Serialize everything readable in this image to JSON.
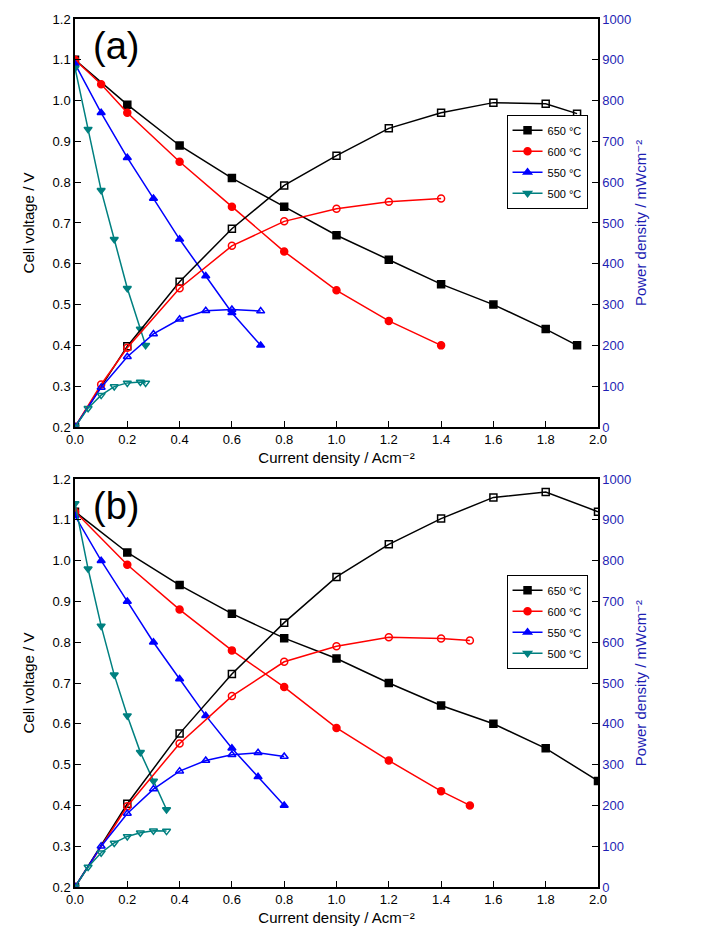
{
  "chart_data": [
    {
      "type": "line",
      "title": "(a)",
      "x_label": "Current density / Acm⁻²",
      "y_label": "Cell voltage / V",
      "y2_label": "Power density / mWcm⁻²",
      "xlim": [
        0,
        2
      ],
      "xticks": [
        {
          "value": 0,
          "label": "0.0"
        },
        0.2,
        0.4,
        0.6,
        0.8,
        {
          "value": 1,
          "label": "1.0"
        },
        1.2,
        1.4,
        1.6,
        1.8,
        {
          "value": 2,
          "label": "2.0"
        }
      ],
      "ylim": [
        0.2,
        1.2
      ],
      "yticks": [
        0.2,
        0.3,
        0.4,
        0.5,
        0.6,
        0.7,
        0.8,
        0.9,
        {
          "value": 1,
          "label": "1.0"
        },
        1.1,
        1.2
      ],
      "y2lim": [
        0,
        1000
      ],
      "y2ticks": [
        0,
        100,
        200,
        300,
        400,
        500,
        600,
        700,
        800,
        900,
        1000
      ],
      "grid": false,
      "legend": "right",
      "series": [
        {
          "name": "650 °C",
          "color": "#000000",
          "marker": "square",
          "line_style": "solid",
          "x": [
            0,
            0.2,
            0.4,
            0.6,
            0.8,
            1.0,
            1.2,
            1.4,
            1.6,
            1.8,
            1.92
          ],
          "values": [
            1.1,
            0.99,
            0.89,
            0.81,
            0.74,
            0.67,
            0.61,
            0.55,
            0.5,
            0.44,
            0.4
          ]
        },
        {
          "name": "600 °C",
          "color": "#ff0000",
          "marker": "circle",
          "line_style": "solid",
          "x": [
            0,
            0.1,
            0.2,
            0.4,
            0.6,
            0.8,
            1.0,
            1.2,
            1.4
          ],
          "values": [
            1.1,
            1.04,
            0.97,
            0.85,
            0.74,
            0.63,
            0.535,
            0.46,
            0.4
          ]
        },
        {
          "name": "550 °C",
          "color": "#0000ff",
          "marker": "triangle-up",
          "line_style": "solid",
          "x": [
            0,
            0.1,
            0.2,
            0.3,
            0.4,
            0.5,
            0.6,
            0.71
          ],
          "values": [
            1.09,
            0.97,
            0.86,
            0.76,
            0.66,
            0.57,
            0.48,
            0.4
          ]
        },
        {
          "name": "500 °C",
          "color": "#008080",
          "marker": "triangle-down",
          "line_style": "solid",
          "x": [
            0,
            0.05,
            0.1,
            0.15,
            0.2,
            0.25,
            0.27
          ],
          "values": [
            1.08,
            0.93,
            0.78,
            0.66,
            0.54,
            0.44,
            0.4
          ]
        },
        {
          "name": "650 °C",
          "color": "#000000",
          "marker": "square-open",
          "line_style": "solid",
          "axis": "y2",
          "x": [
            0,
            0.2,
            0.4,
            0.6,
            0.8,
            1.0,
            1.2,
            1.4,
            1.6,
            1.8,
            1.92
          ],
          "values": [
            0,
            198,
            356,
            486,
            592,
            665,
            732,
            770,
            795,
            792,
            768
          ]
        },
        {
          "name": "600 °C",
          "color": "#ff0000",
          "marker": "circle-open",
          "line_style": "solid",
          "axis": "y2",
          "x": [
            0,
            0.1,
            0.2,
            0.4,
            0.6,
            0.8,
            1.0,
            1.2,
            1.4
          ],
          "values": [
            0,
            104,
            194,
            340,
            444,
            504,
            535,
            552,
            560
          ]
        },
        {
          "name": "550 °C",
          "color": "#0000ff",
          "marker": "triangle-up-open",
          "line_style": "solid",
          "axis": "y2",
          "x": [
            0,
            0.1,
            0.2,
            0.3,
            0.4,
            0.5,
            0.6,
            0.71
          ],
          "values": [
            0,
            97,
            172,
            228,
            264,
            285,
            288,
            284
          ]
        },
        {
          "name": "500 °C",
          "color": "#008080",
          "marker": "triangle-down-open",
          "line_style": "solid",
          "axis": "y2",
          "x": [
            0,
            0.05,
            0.1,
            0.15,
            0.2,
            0.25,
            0.27
          ],
          "values": [
            0,
            46,
            78,
            99,
            108,
            110,
            108
          ]
        }
      ]
    },
    {
      "type": "line",
      "title": "(b)",
      "x_label": "Current density / Acm⁻²",
      "y_label": "Cell voltage / V",
      "y2_label": "Power density / mWcm⁻²",
      "xlim": [
        0,
        2
      ],
      "xticks": [
        {
          "value": 0,
          "label": "0.0"
        },
        0.2,
        0.4,
        0.6,
        0.8,
        {
          "value": 1,
          "label": "1.0"
        },
        1.2,
        1.4,
        1.6,
        1.8,
        {
          "value": 2,
          "label": "2.0"
        }
      ],
      "ylim": [
        0.2,
        1.2
      ],
      "yticks": [
        0.2,
        0.3,
        0.4,
        0.5,
        0.6,
        0.7,
        0.8,
        0.9,
        {
          "value": 1,
          "label": "1.0"
        },
        1.1,
        1.2
      ],
      "y2lim": [
        0,
        1000
      ],
      "y2ticks": [
        0,
        100,
        200,
        300,
        400,
        500,
        600,
        700,
        800,
        900,
        1000
      ],
      "grid": false,
      "legend": "right",
      "series": [
        {
          "name": "650 °C",
          "color": "#000000",
          "marker": "square",
          "line_style": "solid",
          "x": [
            0,
            0.2,
            0.4,
            0.6,
            0.8,
            1.0,
            1.2,
            1.4,
            1.6,
            1.8,
            2.0
          ],
          "values": [
            1.12,
            1.02,
            0.94,
            0.87,
            0.81,
            0.76,
            0.7,
            0.645,
            0.6,
            0.54,
            0.46
          ]
        },
        {
          "name": "600 °C",
          "color": "#ff0000",
          "marker": "circle",
          "line_style": "solid",
          "x": [
            0,
            0.2,
            0.4,
            0.6,
            0.8,
            1.0,
            1.2,
            1.4,
            1.51
          ],
          "values": [
            1.12,
            0.99,
            0.88,
            0.78,
            0.69,
            0.59,
            0.51,
            0.435,
            0.4
          ]
        },
        {
          "name": "550 °C",
          "color": "#0000ff",
          "marker": "triangle-up",
          "line_style": "solid",
          "x": [
            0,
            0.1,
            0.2,
            0.3,
            0.4,
            0.5,
            0.6,
            0.7,
            0.8
          ],
          "values": [
            1.11,
            1.0,
            0.9,
            0.8,
            0.71,
            0.62,
            0.54,
            0.47,
            0.4
          ]
        },
        {
          "name": "500 °C",
          "color": "#008080",
          "marker": "triangle-down",
          "line_style": "solid",
          "x": [
            0,
            0.05,
            0.1,
            0.15,
            0.2,
            0.25,
            0.3,
            0.35
          ],
          "values": [
            1.14,
            0.98,
            0.84,
            0.72,
            0.62,
            0.53,
            0.46,
            0.39
          ]
        },
        {
          "name": "650 °C",
          "color": "#000000",
          "marker": "square-open",
          "line_style": "solid",
          "axis": "y2",
          "x": [
            0,
            0.2,
            0.4,
            0.6,
            0.8,
            1.0,
            1.2,
            1.4,
            1.6,
            1.8,
            2.0
          ],
          "values": [
            0,
            204,
            376,
            522,
            648,
            760,
            840,
            903,
            955,
            968,
            920
          ]
        },
        {
          "name": "600 °C",
          "color": "#ff0000",
          "marker": "circle-open",
          "line_style": "solid",
          "axis": "y2",
          "x": [
            0,
            0.2,
            0.4,
            0.6,
            0.8,
            1.0,
            1.2,
            1.4,
            1.51
          ],
          "values": [
            0,
            198,
            352,
            468,
            552,
            590,
            612,
            609,
            604
          ]
        },
        {
          "name": "550 °C",
          "color": "#0000ff",
          "marker": "triangle-up-open",
          "line_style": "solid",
          "axis": "y2",
          "x": [
            0,
            0.1,
            0.2,
            0.3,
            0.4,
            0.5,
            0.6,
            0.7,
            0.8
          ],
          "values": [
            0,
            100,
            180,
            240,
            284,
            310,
            324,
            329,
            320
          ]
        },
        {
          "name": "500 °C",
          "color": "#008080",
          "marker": "triangle-down-open",
          "line_style": "solid",
          "axis": "y2",
          "x": [
            0,
            0.05,
            0.1,
            0.15,
            0.2,
            0.25,
            0.3,
            0.35
          ],
          "values": [
            0,
            49,
            84,
            108,
            124,
            133,
            138,
            137
          ]
        }
      ]
    }
  ]
}
